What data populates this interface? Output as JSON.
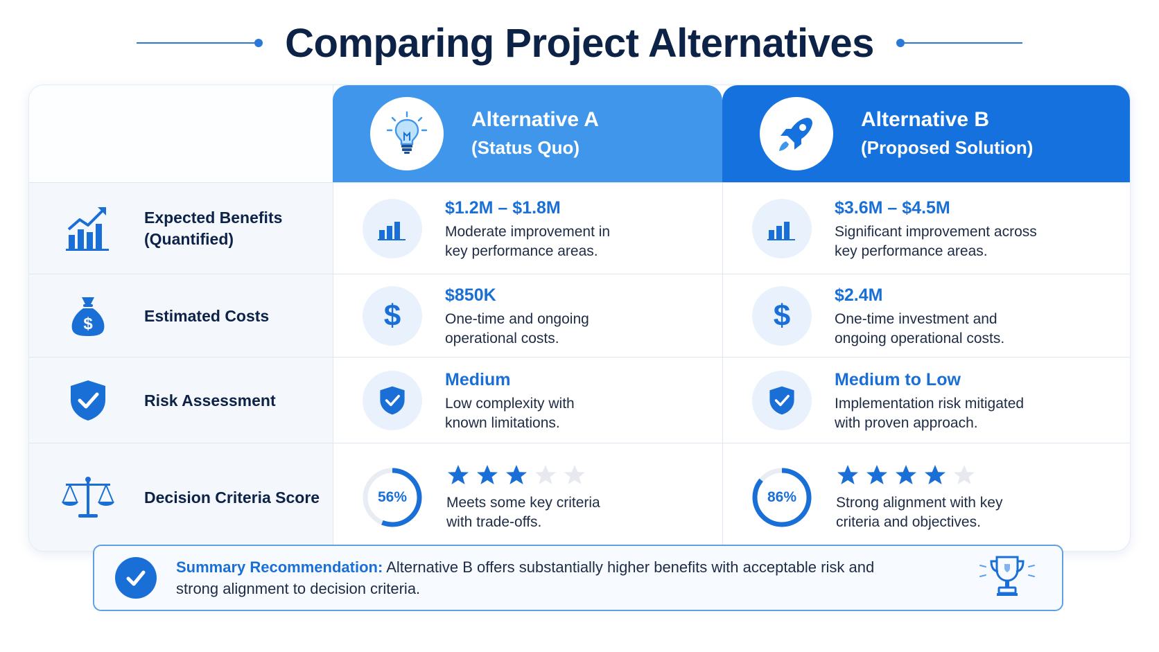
{
  "page": {
    "title": "Comparing Project Alternatives"
  },
  "alternatives": [
    {
      "title": "Alternative A",
      "subtitle": "(Status Quo)",
      "color": "#3f96ea",
      "icon": "lightbulb-icon"
    },
    {
      "title": "Alternative B",
      "subtitle": "(Proposed Solution)",
      "color": "#1571dd",
      "icon": "rocket-icon"
    }
  ],
  "rows": [
    {
      "label_line1": "Expected Benefits",
      "label_line2": "(Quantified)",
      "icon": "growth-chart-icon",
      "a": {
        "value": "$1.2M – $1.8M",
        "desc": "Moderate improvement in\nkey performance areas.",
        "icon": "bar-chart-icon"
      },
      "b": {
        "value": "$3.6M – $4.5M",
        "desc": "Significant improvement across\nkey performance areas.",
        "icon": "bar-chart-icon"
      }
    },
    {
      "label": "Estimated Costs",
      "icon": "money-bag-icon",
      "a": {
        "value": "$850K",
        "desc": "One-time and ongoing\noperational costs.",
        "icon": "dollar-icon"
      },
      "b": {
        "value": "$2.4M",
        "desc": "One-time investment and\nongoing operational costs.",
        "icon": "dollar-icon"
      }
    },
    {
      "label": "Risk Assessment",
      "icon": "shield-check-icon",
      "a": {
        "value": "Medium",
        "desc": "Low complexity with\nknown limitations.",
        "icon": "shield-check-icon"
      },
      "b": {
        "value": "Medium to Low",
        "desc": "Implementation risk mitigated\nwith proven approach.",
        "icon": "shield-check-icon"
      }
    },
    {
      "label": "Decision Criteria Score",
      "icon": "scale-icon",
      "a": {
        "score_text": "56%",
        "score": 0.56,
        "stars": 3,
        "max_stars": 5,
        "desc": "Meets some key criteria\nwith trade-offs."
      },
      "b": {
        "score_text": "86%",
        "score": 0.86,
        "stars": 4,
        "max_stars": 5,
        "desc": "Strong alignment with key\ncriteria and objectives."
      }
    }
  ],
  "summary": {
    "lead": "Summary Recommendation:",
    "text": " Alternative B offers substantially higher benefits with acceptable risk and strong alignment to decision criteria.",
    "icon": "trophy-icon"
  },
  "colors": {
    "accent": "#1a6fd6",
    "star_filled": "#1a6fd6",
    "star_empty": "#e6e9ee",
    "ring_track": "#e8edf3"
  }
}
